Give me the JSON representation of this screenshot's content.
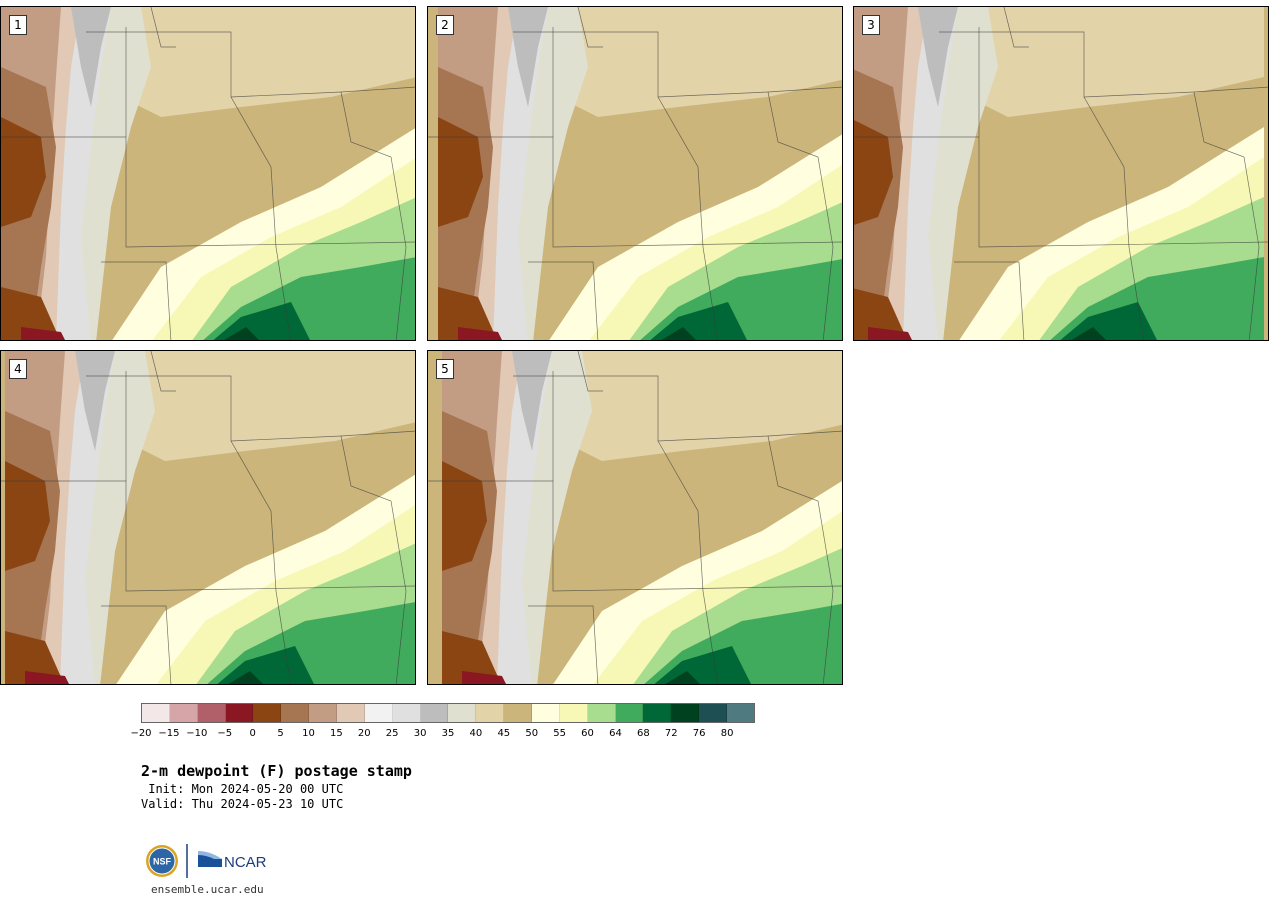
{
  "panels": [
    {
      "label": "1"
    },
    {
      "label": "2"
    },
    {
      "label": "3"
    },
    {
      "label": "4"
    },
    {
      "label": "5"
    }
  ],
  "colorbar": {
    "colors": [
      "#f3e7e7",
      "#d6a5a8",
      "#b1606a",
      "#8a1722",
      "#8b4513",
      "#a67653",
      "#c39c84",
      "#e1c9b5",
      "#f2f2f2",
      "#e0e0e0",
      "#bdbdbd",
      "#e0e0d1",
      "#e3d3a9",
      "#cbb57b",
      "#ffffe0",
      "#f7f8b6",
      "#a8dc8f",
      "#41ab5d",
      "#006837",
      "#00421f",
      "#1e4f52",
      "#4f7a80"
    ],
    "ticks": [
      "−20",
      "−15",
      "−10",
      "−5",
      "0",
      "5",
      "10",
      "15",
      "20",
      "25",
      "30",
      "35",
      "40",
      "45",
      "50",
      "55",
      "60",
      "64",
      "68",
      "72",
      "76",
      "80"
    ]
  },
  "title": "2-m dewpoint (F) postage stamp",
  "init": " Init: Mon 2024-05-20 00 UTC",
  "valid": "Valid: Thu 2024-05-23 10 UTC",
  "logos": {
    "nsf": "NSF",
    "ncar": "NCAR"
  },
  "url": "ensemble.ucar.edu"
}
